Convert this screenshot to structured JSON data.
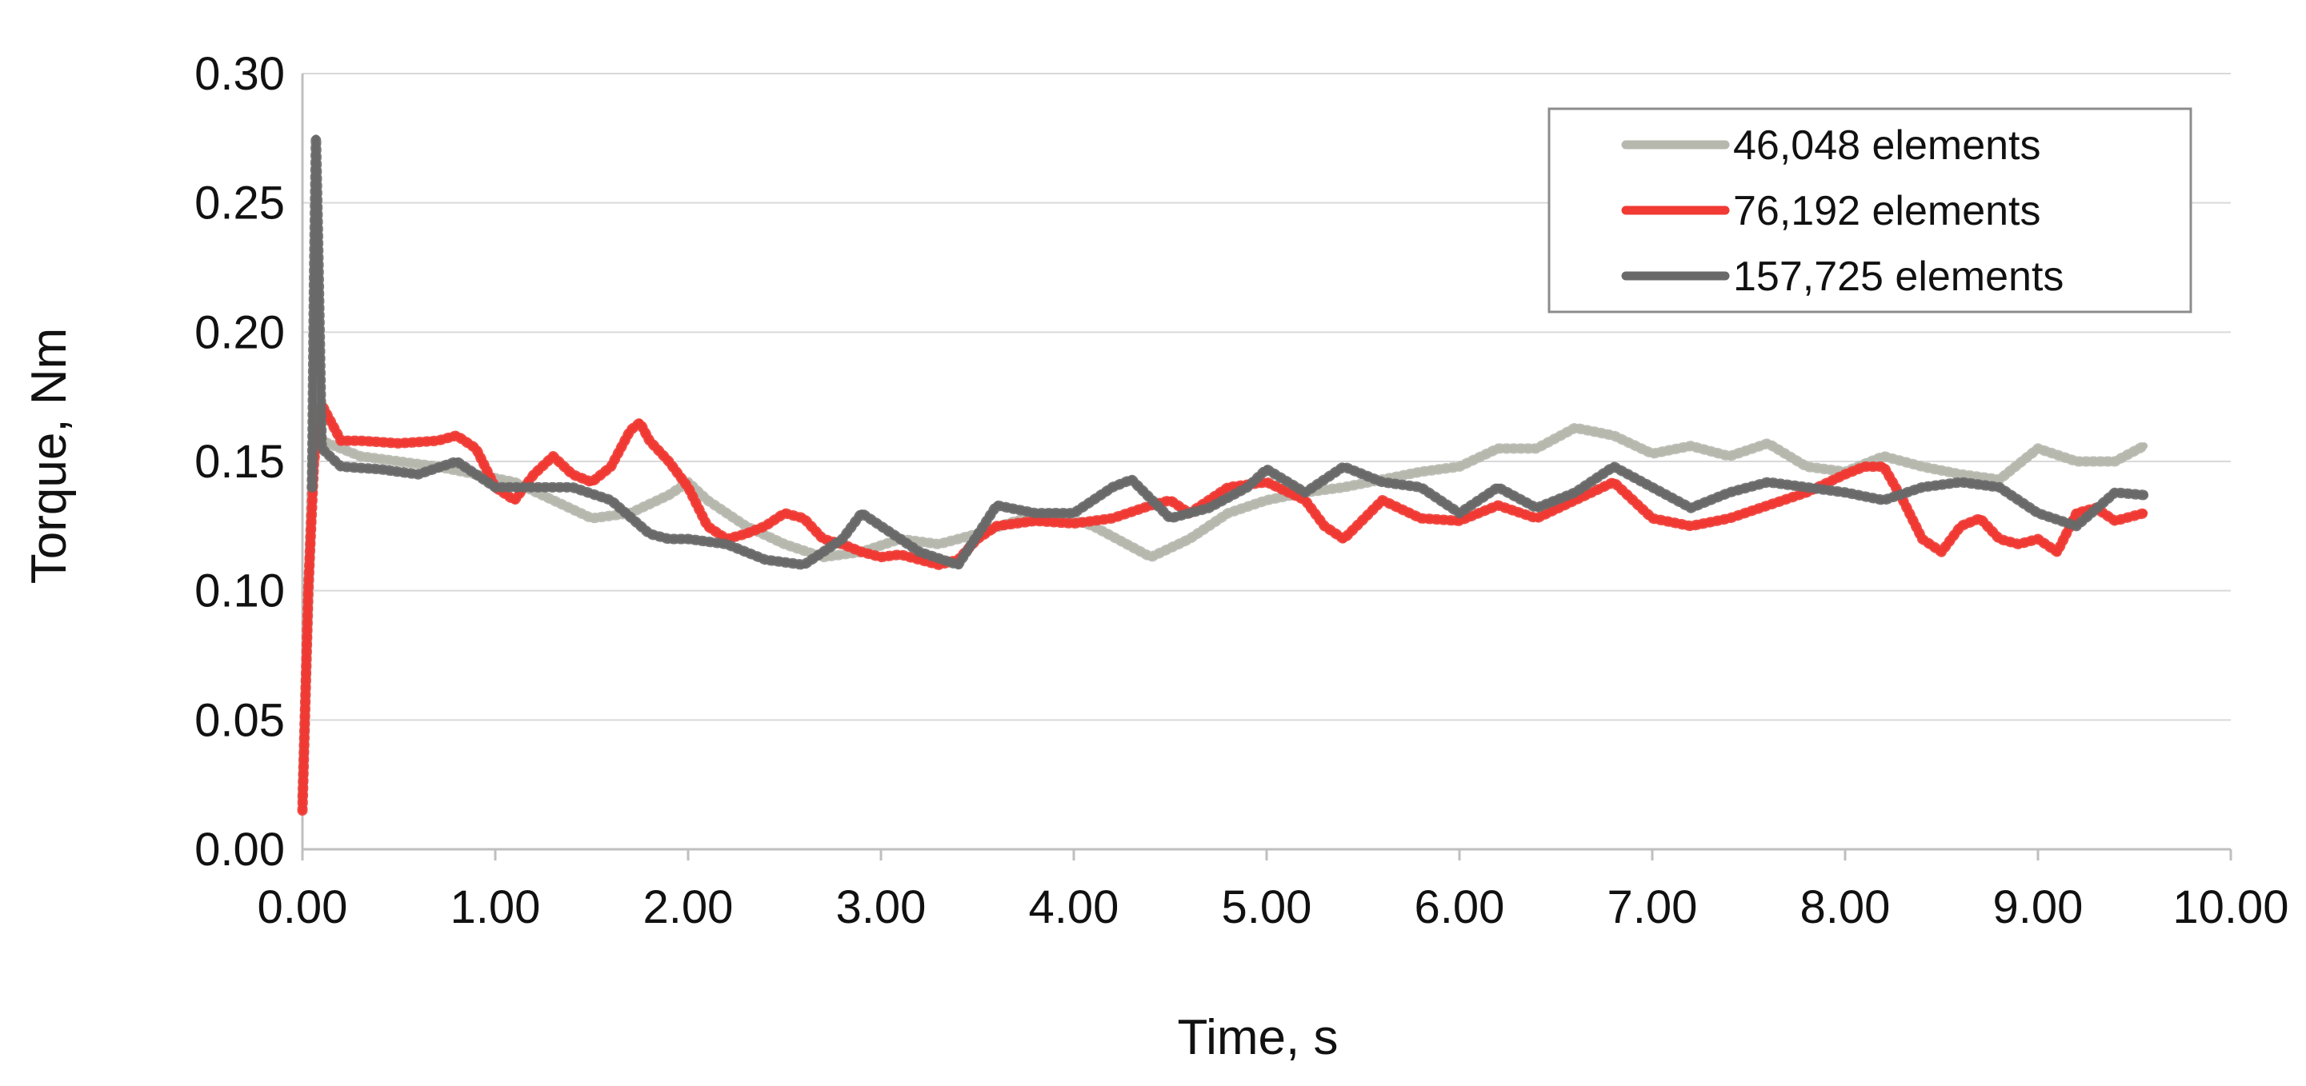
{
  "chart_data": {
    "type": "line",
    "title": "",
    "xlabel": "Time, s",
    "ylabel": "Torque, Nm",
    "xlim": [
      0,
      10
    ],
    "ylim": [
      0,
      0.3
    ],
    "x_ticks": [
      "0.00",
      "1.00",
      "2.00",
      "3.00",
      "4.00",
      "5.00",
      "6.00",
      "7.00",
      "8.00",
      "9.00",
      "10.00"
    ],
    "y_ticks": [
      "0.00",
      "0.05",
      "0.10",
      "0.15",
      "0.20",
      "0.25",
      "0.30"
    ],
    "grid": "horizontal",
    "legend_position": "top-right",
    "series": [
      {
        "name": "46,048 elements",
        "color": "#b6b8ae",
        "x": [
          0.0,
          0.06,
          0.1,
          0.3,
          0.5,
          0.7,
          0.9,
          1.1,
          1.3,
          1.5,
          1.7,
          1.9,
          2.0,
          2.1,
          2.3,
          2.5,
          2.7,
          2.9,
          3.1,
          3.3,
          3.5,
          3.7,
          3.9,
          4.1,
          4.3,
          4.4,
          4.6,
          4.8,
          5.0,
          5.2,
          5.4,
          5.6,
          5.8,
          6.0,
          6.2,
          6.4,
          6.6,
          6.8,
          7.0,
          7.2,
          7.4,
          7.6,
          7.8,
          8.0,
          8.2,
          8.4,
          8.6,
          8.8,
          9.0,
          9.2,
          9.4,
          9.55
        ],
        "values": [
          0.02,
          0.17,
          0.158,
          0.152,
          0.15,
          0.148,
          0.145,
          0.142,
          0.135,
          0.128,
          0.13,
          0.137,
          0.142,
          0.135,
          0.125,
          0.118,
          0.113,
          0.115,
          0.12,
          0.118,
          0.122,
          0.127,
          0.13,
          0.125,
          0.117,
          0.113,
          0.12,
          0.13,
          0.135,
          0.138,
          0.14,
          0.143,
          0.146,
          0.148,
          0.155,
          0.155,
          0.163,
          0.16,
          0.153,
          0.156,
          0.152,
          0.157,
          0.148,
          0.146,
          0.152,
          0.148,
          0.145,
          0.143,
          0.155,
          0.15,
          0.15,
          0.156
        ]
      },
      {
        "name": "76,192 elements",
        "color": "#f03a33",
        "x": [
          0.0,
          0.03,
          0.06,
          0.1,
          0.2,
          0.3,
          0.5,
          0.7,
          0.8,
          0.9,
          1.0,
          1.1,
          1.2,
          1.3,
          1.4,
          1.5,
          1.6,
          1.7,
          1.75,
          1.8,
          1.9,
          2.0,
          2.1,
          2.2,
          2.3,
          2.4,
          2.5,
          2.6,
          2.7,
          2.8,
          2.9,
          3.0,
          3.1,
          3.2,
          3.3,
          3.4,
          3.5,
          3.6,
          3.8,
          4.0,
          4.2,
          4.4,
          4.5,
          4.6,
          4.8,
          5.0,
          5.2,
          5.3,
          5.4,
          5.6,
          5.8,
          6.0,
          6.2,
          6.4,
          6.6,
          6.8,
          7.0,
          7.2,
          7.4,
          7.6,
          7.8,
          8.0,
          8.1,
          8.2,
          8.3,
          8.4,
          8.5,
          8.6,
          8.7,
          8.8,
          8.9,
          9.0,
          9.1,
          9.2,
          9.3,
          9.4,
          9.55
        ],
        "values": [
          0.015,
          0.1,
          0.15,
          0.172,
          0.158,
          0.158,
          0.157,
          0.158,
          0.16,
          0.155,
          0.14,
          0.135,
          0.145,
          0.152,
          0.145,
          0.142,
          0.148,
          0.162,
          0.165,
          0.158,
          0.15,
          0.14,
          0.125,
          0.12,
          0.122,
          0.125,
          0.13,
          0.128,
          0.12,
          0.118,
          0.115,
          0.113,
          0.114,
          0.112,
          0.11,
          0.112,
          0.12,
          0.125,
          0.127,
          0.126,
          0.128,
          0.133,
          0.135,
          0.13,
          0.14,
          0.142,
          0.135,
          0.125,
          0.12,
          0.135,
          0.128,
          0.127,
          0.133,
          0.128,
          0.135,
          0.142,
          0.128,
          0.125,
          0.128,
          0.133,
          0.138,
          0.145,
          0.148,
          0.148,
          0.135,
          0.12,
          0.115,
          0.125,
          0.128,
          0.12,
          0.118,
          0.12,
          0.115,
          0.13,
          0.132,
          0.127,
          0.13
        ]
      },
      {
        "name": "157,725 elements",
        "color": "#696969",
        "x": [
          0.05,
          0.06,
          0.07,
          0.08,
          0.1,
          0.2,
          0.4,
          0.6,
          0.8,
          1.0,
          1.2,
          1.4,
          1.6,
          1.8,
          1.9,
          2.0,
          2.2,
          2.4,
          2.6,
          2.8,
          2.9,
          3.0,
          3.2,
          3.4,
          3.6,
          3.8,
          4.0,
          4.2,
          4.3,
          4.5,
          4.7,
          4.9,
          5.0,
          5.2,
          5.4,
          5.6,
          5.8,
          6.0,
          6.2,
          6.4,
          6.6,
          6.8,
          7.0,
          7.2,
          7.4,
          7.6,
          7.8,
          8.0,
          8.2,
          8.4,
          8.6,
          8.8,
          9.0,
          9.2,
          9.4,
          9.55
        ],
        "values": [
          0.14,
          0.22,
          0.275,
          0.24,
          0.155,
          0.148,
          0.147,
          0.145,
          0.15,
          0.14,
          0.14,
          0.14,
          0.135,
          0.122,
          0.12,
          0.12,
          0.118,
          0.112,
          0.11,
          0.12,
          0.13,
          0.125,
          0.115,
          0.11,
          0.133,
          0.13,
          0.13,
          0.14,
          0.143,
          0.128,
          0.132,
          0.14,
          0.147,
          0.138,
          0.148,
          0.142,
          0.14,
          0.13,
          0.14,
          0.132,
          0.138,
          0.148,
          0.14,
          0.132,
          0.138,
          0.142,
          0.14,
          0.138,
          0.135,
          0.14,
          0.142,
          0.14,
          0.13,
          0.125,
          0.138,
          0.137
        ]
      }
    ]
  }
}
